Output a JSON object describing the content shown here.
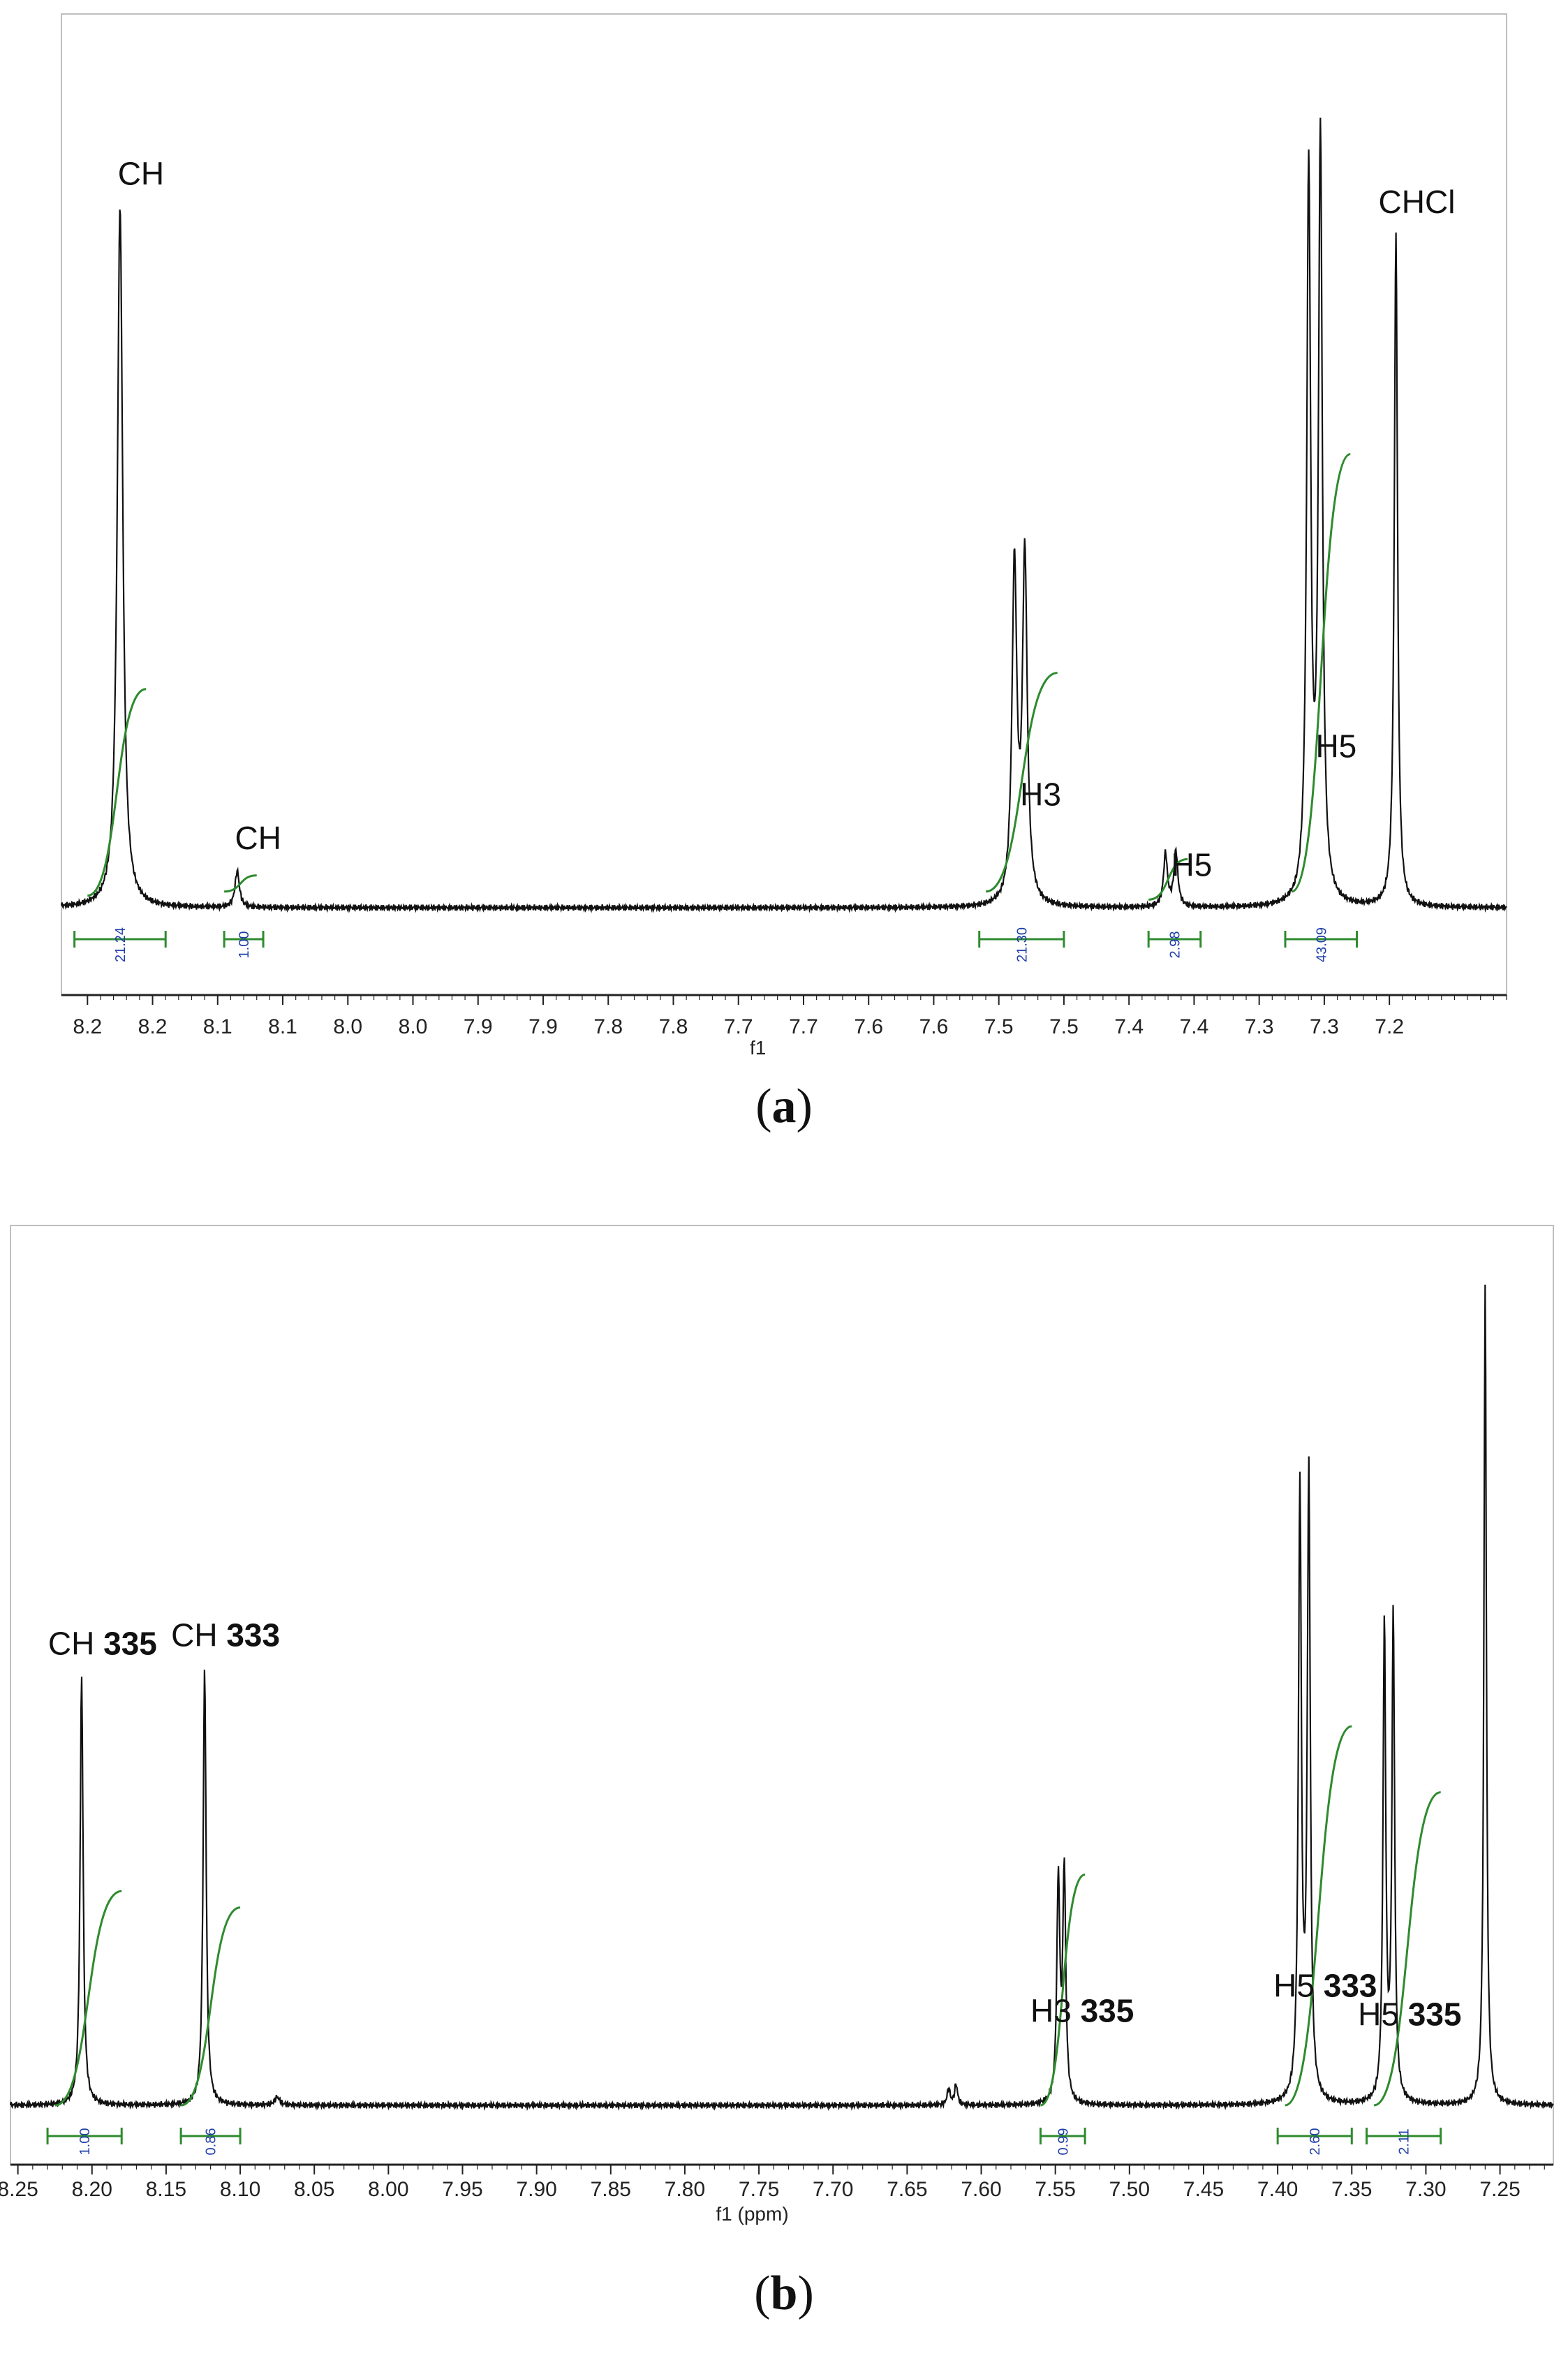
{
  "panels": [
    {
      "id": "a",
      "caption": "a",
      "chart_data": {
        "type": "line",
        "title": "",
        "xlabel": "f1",
        "ylabel": "",
        "xlim": [
          8.22,
          7.11
        ],
        "x_reversed": true,
        "xticks": [
          8.2,
          8.1,
          8.0,
          7.9,
          7.8,
          7.7,
          7.6,
          7.5,
          7.4,
          7.3,
          7.2
        ],
        "tick_labels": [
          "8.2",
          "8.2",
          "8.1",
          "8.1",
          "8.0",
          "8.0",
          "7.9",
          "7.9",
          "7.8",
          "7.8",
          "7.7",
          "7.7",
          "7.6",
          "7.6",
          "7.5",
          "7.5",
          "7.4",
          "7.4",
          "7.3",
          "7.3",
          "7.2"
        ],
        "tick_positions": [
          8.2,
          8.15,
          8.1,
          8.05,
          8.0,
          7.95,
          7.9,
          7.85,
          7.8,
          7.75,
          7.7,
          7.65,
          7.6,
          7.55,
          7.5,
          7.45,
          7.4,
          7.35,
          7.3,
          7.25,
          7.2
        ],
        "peaks": [
          {
            "ppm": 8.175,
            "height": 0.865,
            "width": 0.0025
          },
          {
            "ppm": 8.085,
            "height": 0.045,
            "width": 0.002
          },
          {
            "ppm": 7.488,
            "height": 0.415,
            "width": 0.0022
          },
          {
            "ppm": 7.48,
            "height": 0.425,
            "width": 0.0022
          },
          {
            "ppm": 7.372,
            "height": 0.065,
            "width": 0.0018
          },
          {
            "ppm": 7.364,
            "height": 0.068,
            "width": 0.0018
          },
          {
            "ppm": 7.262,
            "height": 0.9,
            "width": 0.0018
          },
          {
            "ppm": 7.253,
            "height": 0.94,
            "width": 0.0018
          },
          {
            "ppm": 7.195,
            "height": 0.83,
            "width": 0.0015
          }
        ],
        "annotations": [
          {
            "ppm": 8.175,
            "text": "CH",
            "bold": ""
          },
          {
            "ppm": 8.085,
            "text": "CH",
            "bold": ""
          },
          {
            "ppm": 7.484,
            "text": "H3",
            "bold": ""
          },
          {
            "ppm": 7.368,
            "text": "H5",
            "bold": ""
          },
          {
            "ppm": 7.257,
            "text": "H5",
            "bold": ""
          },
          {
            "ppm": 7.195,
            "text": "CHCl",
            "bold": ""
          }
        ],
        "integrals": [
          {
            "from": 8.21,
            "to": 8.14,
            "value": "21.24"
          },
          {
            "from": 8.095,
            "to": 8.065,
            "value": "1.00"
          },
          {
            "from": 7.515,
            "to": 7.45,
            "value": "21.30"
          },
          {
            "from": 7.385,
            "to": 7.345,
            "value": "2.98"
          },
          {
            "from": 7.28,
            "to": 7.225,
            "value": "43.09"
          }
        ],
        "integral_curves": [
          {
            "from": 8.2,
            "to": 8.155,
            "start": 0.015,
            "end": 0.27
          },
          {
            "from": 8.095,
            "to": 8.07,
            "start": 0.02,
            "end": 0.04
          },
          {
            "from": 7.51,
            "to": 7.455,
            "start": 0.02,
            "end": 0.29
          },
          {
            "from": 7.385,
            "to": 7.355,
            "start": 0.01,
            "end": 0.06
          },
          {
            "from": 7.275,
            "to": 7.23,
            "start": 0.02,
            "end": 0.56
          }
        ]
      }
    },
    {
      "id": "b",
      "caption": "b",
      "chart_data": {
        "type": "line",
        "title": "",
        "xlabel": "f1 (ppm)",
        "ylabel": "",
        "xlim": [
          8.255,
          7.214
        ],
        "x_reversed": true,
        "tick_labels": [
          "8.25",
          "8.20",
          "8.15",
          "8.10",
          "8.05",
          "8.00",
          "7.95",
          "7.90",
          "7.85",
          "7.80",
          "7.75",
          "7.70",
          "7.65",
          "7.60",
          "7.55",
          "7.50",
          "7.45",
          "7.40",
          "7.35",
          "7.30",
          "7.25"
        ],
        "tick_positions": [
          8.25,
          8.2,
          8.15,
          8.1,
          8.05,
          8.0,
          7.95,
          7.9,
          7.85,
          7.8,
          7.75,
          7.7,
          7.65,
          7.6,
          7.55,
          7.5,
          7.45,
          7.4,
          7.35,
          7.3,
          7.25
        ],
        "peaks": [
          {
            "ppm": 8.207,
            "height": 0.52,
            "width": 0.0012
          },
          {
            "ppm": 8.124,
            "height": 0.53,
            "width": 0.0012
          },
          {
            "ppm": 8.075,
            "height": 0.01,
            "width": 0.002
          },
          {
            "ppm": 7.622,
            "height": 0.02,
            "width": 0.0012
          },
          {
            "ppm": 7.617,
            "height": 0.025,
            "width": 0.0012
          },
          {
            "ppm": 7.548,
            "height": 0.27,
            "width": 0.0012
          },
          {
            "ppm": 7.544,
            "height": 0.28,
            "width": 0.0012
          },
          {
            "ppm": 7.385,
            "height": 0.74,
            "width": 0.0012
          },
          {
            "ppm": 7.379,
            "height": 0.76,
            "width": 0.0012
          },
          {
            "ppm": 7.328,
            "height": 0.58,
            "width": 0.0011
          },
          {
            "ppm": 7.322,
            "height": 0.59,
            "width": 0.0011
          },
          {
            "ppm": 7.26,
            "height": 1.0,
            "width": 0.001
          }
        ],
        "annotations": [
          {
            "ppm": 8.207,
            "text": "CH ",
            "bold": "335"
          },
          {
            "ppm": 8.124,
            "text": "CH ",
            "bold": "333"
          },
          {
            "ppm": 7.546,
            "text": "H3 ",
            "bold": "335"
          },
          {
            "ppm": 7.382,
            "text": "H5 ",
            "bold": "333"
          },
          {
            "ppm": 7.325,
            "text": "H5 ",
            "bold": "335"
          }
        ],
        "integrals": [
          {
            "from": 8.23,
            "to": 8.18,
            "value": "1.00"
          },
          {
            "from": 8.14,
            "to": 8.1,
            "value": "0.86"
          },
          {
            "from": 7.56,
            "to": 7.53,
            "value": "0.99"
          },
          {
            "from": 7.4,
            "to": 7.35,
            "value": "2.60"
          },
          {
            "from": 7.34,
            "to": 7.29,
            "value": "2.11"
          }
        ],
        "integral_curves": [
          {
            "from": 8.225,
            "to": 8.18,
            "start": 0.0,
            "end": 0.26
          },
          {
            "from": 8.14,
            "to": 8.1,
            "start": 0.0,
            "end": 0.24
          },
          {
            "from": 7.56,
            "to": 7.53,
            "start": 0.0,
            "end": 0.28
          },
          {
            "from": 7.395,
            "to": 7.35,
            "start": 0.0,
            "end": 0.46
          },
          {
            "from": 7.335,
            "to": 7.29,
            "start": 0.0,
            "end": 0.38
          }
        ]
      }
    }
  ]
}
